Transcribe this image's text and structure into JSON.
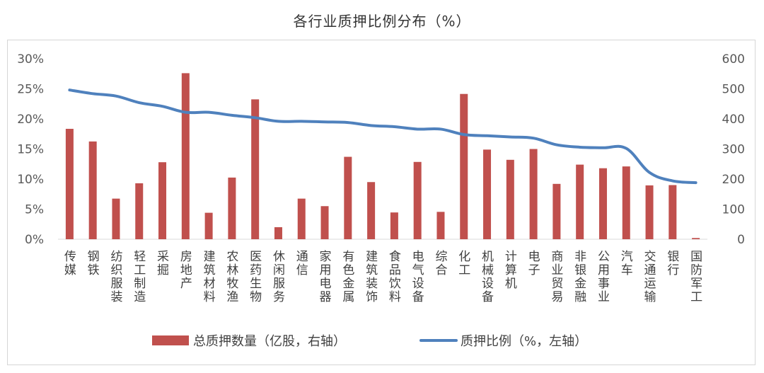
{
  "chart_data": {
    "type": "bar+line",
    "title": "各行业质押比例分布（%）",
    "categories": [
      "传媒",
      "钢铁",
      "纺织服装",
      "轻工制造",
      "采掘",
      "房地产",
      "建筑材料",
      "农林牧渔",
      "医药生物",
      "休闲服务",
      "通信",
      "家用电器",
      "有色金属",
      "建筑装饰",
      "食品饮料",
      "电气设备",
      "综合",
      "化工",
      "机械设备",
      "计算机",
      "电子",
      "商业贸易",
      "非银金融",
      "公用事业",
      "汽车",
      "交通运输",
      "银行",
      "国防军工"
    ],
    "series": [
      {
        "name": "总质押数量（亿股，右轴）",
        "type": "bar",
        "axis": "right",
        "color": "#c0504d",
        "values": [
          367,
          325,
          135,
          186,
          256,
          552,
          88,
          205,
          465,
          40,
          135,
          110,
          274,
          190,
          89,
          257,
          91,
          483,
          298,
          264,
          300,
          184,
          248,
          236,
          242,
          179,
          180,
          4
        ]
      },
      {
        "name": "质押比例（%，左轴）",
        "type": "line",
        "axis": "left",
        "color": "#4f81bd",
        "values": [
          24.8,
          24.2,
          23.8,
          22.7,
          22.1,
          21.1,
          21.1,
          20.6,
          20.2,
          19.6,
          19.6,
          19.5,
          19.4,
          18.9,
          18.7,
          18.3,
          18.3,
          17.4,
          17.2,
          17.0,
          16.8,
          15.7,
          15.3,
          15.2,
          15.1,
          11.1,
          9.7,
          9.4
        ]
      }
    ],
    "y_left": {
      "min": 0,
      "max": 30,
      "ticks": [
        "0%",
        "5%",
        "10%",
        "15%",
        "20%",
        "25%",
        "30%"
      ]
    },
    "y_right": {
      "min": 0,
      "max": 600,
      "ticks": [
        "0",
        "100",
        "200",
        "300",
        "400",
        "500",
        "600"
      ]
    },
    "grid": false,
    "legend_position": "bottom"
  },
  "colors": {
    "bar": "#c0504d",
    "line": "#4f81bd"
  }
}
